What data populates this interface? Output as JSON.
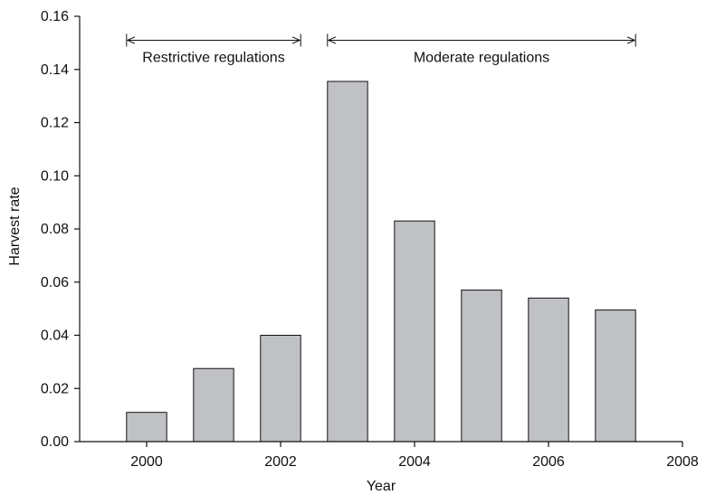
{
  "chart_data": {
    "type": "bar",
    "x": [
      2000,
      2001,
      2002,
      2003,
      2004,
      2005,
      2006,
      2007
    ],
    "values": [
      0.011,
      0.0275,
      0.04,
      0.1355,
      0.083,
      0.057,
      0.054,
      0.0495
    ],
    "xlabel": "Year",
    "ylabel": "Harvest rate",
    "xlim": [
      1999,
      2008
    ],
    "ylim": [
      0,
      0.16
    ],
    "x_ticks": [
      2000,
      2002,
      2004,
      2006,
      2008
    ],
    "y_ticks": [
      0,
      0.02,
      0.04,
      0.06,
      0.08,
      0.1,
      0.12,
      0.14,
      0.16
    ],
    "x_tick_labels": [
      "2000",
      "2002",
      "2004",
      "2006",
      "2008"
    ],
    "y_tick_labels": [
      "0.00",
      "0.02",
      "0.04",
      "0.06",
      "0.08",
      "0.10",
      "0.12",
      "0.14",
      "0.16"
    ],
    "bar_color": "#c0c1c5",
    "grid": false,
    "annotations": [
      {
        "label": "Restrictive regulations",
        "x_start": 1999.7,
        "x_end": 2002.3
      },
      {
        "label": "Moderate regulations",
        "x_start": 2002.7,
        "x_end": 2007.3
      }
    ],
    "annotation_y": 0.151,
    "annotation_label_y": 0.1445
  }
}
